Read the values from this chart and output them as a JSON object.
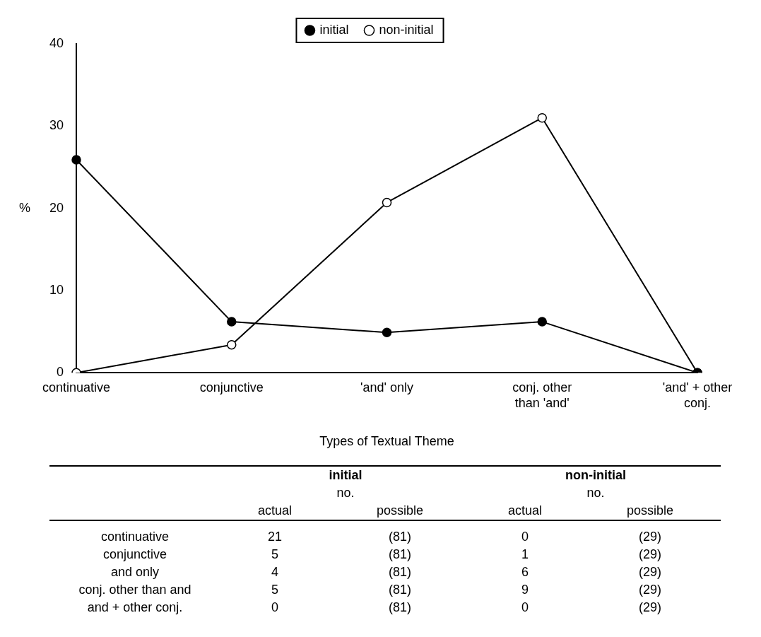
{
  "chart_data": [
    {
      "type": "line",
      "xlabel": "Types of Textual Theme",
      "ylabel": "%",
      "categories": [
        "continuative",
        "conjunctive",
        "'and' only",
        "conj. other than 'and'",
        "'and' + other conj."
      ],
      "series": [
        {
          "name": "initial",
          "color": "#000000",
          "values": [
            25.9,
            6.2,
            4.9,
            6.2,
            0
          ]
        },
        {
          "name": "non-initial",
          "color": "#000000",
          "values": [
            0,
            3.4,
            20.7,
            31.0,
            0
          ]
        }
      ],
      "ylim": [
        0,
        40
      ],
      "yticks": [
        0,
        10,
        20,
        30,
        40
      ],
      "grid": false,
      "legend": "top",
      "marker": "circle",
      "line_style": "solid"
    },
    {
      "type": "other",
      "categories": [
        "continuative",
        "conjunctive",
        "and only",
        "conj. other than and",
        "and + other conj."
      ],
      "series": [
        {
          "name": "initial",
          "values": [
            21,
            5,
            4,
            5,
            0
          ]
        },
        {
          "name": "non-initial",
          "values": [
            0,
            1,
            6,
            9,
            0
          ]
        }
      ],
      "data_labels": true,
      "annotations": [
        "no.",
        "actual",
        "possible",
        "(81)",
        "(29)"
      ]
    }
  ]
}
